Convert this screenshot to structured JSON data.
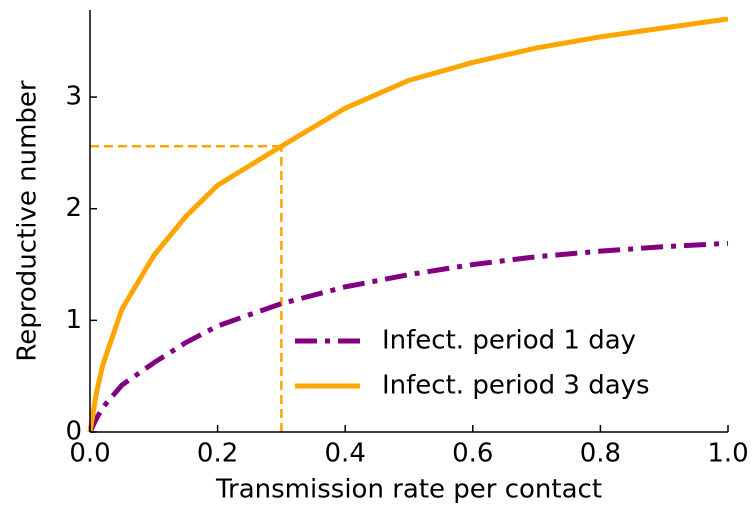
{
  "chart_data": {
    "type": "line",
    "x_label": "Transmission rate per contact",
    "y_label": "Reproductive number",
    "x": [
      0,
      0.01,
      0.02,
      0.05,
      0.1,
      0.15,
      0.2,
      0.3,
      0.4,
      0.5,
      0.6,
      0.7,
      0.8,
      0.9,
      1.0
    ],
    "series": [
      {
        "name": "Infect. period 1 day",
        "color": "#800080",
        "dash": "dashdot",
        "values": [
          0,
          0.12,
          0.22,
          0.42,
          0.62,
          0.8,
          0.95,
          1.15,
          1.3,
          1.41,
          1.5,
          1.57,
          1.62,
          1.66,
          1.69
        ]
      },
      {
        "name": "Infect. period 3 days",
        "color": "#ffa500",
        "dash": "solid",
        "values": [
          0,
          0.35,
          0.6,
          1.1,
          1.58,
          1.93,
          2.21,
          2.56,
          2.9,
          3.15,
          3.31,
          3.44,
          3.54,
          3.62,
          3.7
        ]
      }
    ],
    "reference": {
      "x": 0.3,
      "y": 2.56,
      "color": "#ffa500"
    },
    "xlim": [
      0,
      1
    ],
    "ylim": [
      0,
      3.78
    ],
    "xticks": [
      {
        "value": 0,
        "label": "0.0"
      },
      {
        "value": 0.2,
        "label": "0.2"
      },
      {
        "value": 0.4,
        "label": "0.4"
      },
      {
        "value": 0.6,
        "label": "0.6"
      },
      {
        "value": 0.8,
        "label": "0.8"
      },
      {
        "value": 1,
        "label": "1.0"
      }
    ],
    "yticks": [
      0,
      1,
      2,
      3
    ],
    "grid": false,
    "legend": "lower right"
  }
}
